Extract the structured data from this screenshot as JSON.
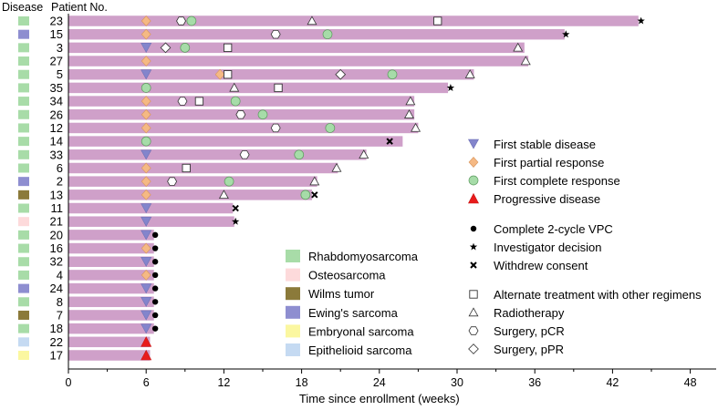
{
  "chart_data": {
    "type": "swimmer",
    "header_disease": "Disease",
    "header_patient": "Patient No.",
    "xlabel": "Time since enrollment (weeks)",
    "xlim": [
      0,
      50
    ],
    "xticks": [
      0,
      6,
      12,
      18,
      24,
      30,
      36,
      42,
      48
    ],
    "bar_color": "#cfa0c9",
    "disease_colors": {
      "Rhabdomyosarcoma": "#a8dca8",
      "Osteosarcoma": "#fddadb",
      "Wilms tumor": "#8b7a3a",
      "Ewing's sarcoma": "#8e8ed0",
      "Embryonal sarcoma": "#fbf7a0",
      "Epithelioid sarcoma": "#c5daf2"
    },
    "disease_legend": [
      "Rhabdomyosarcoma",
      "Osteosarcoma",
      "Wilms tumor",
      "Ewing's sarcoma",
      "Embryonal sarcoma",
      "Epithelioid sarcoma"
    ],
    "event_legend": [
      {
        "type": "stable",
        "label": "First stable disease"
      },
      {
        "type": "partial",
        "label": "First partial response"
      },
      {
        "type": "complete",
        "label": "First complete response"
      },
      {
        "type": "progressive",
        "label": "Progressive disease"
      },
      {
        "type": "vpc",
        "label": "Complete 2-cycle VPC"
      },
      {
        "type": "investigator",
        "label": "Investigator decision"
      },
      {
        "type": "withdrew",
        "label": "Withdrew consent"
      },
      {
        "type": "alternate",
        "label": "Alternate treatment with other regimens"
      },
      {
        "type": "radio",
        "label": "Radiotherapy"
      },
      {
        "type": "pcr",
        "label": "Surgery, pCR"
      },
      {
        "type": "ppr",
        "label": "Surgery, pPR"
      }
    ],
    "patients": [
      {
        "id": "23",
        "disease": "Rhabdomyosarcoma",
        "end": 44,
        "events": [
          {
            "t": 6,
            "type": "partial"
          },
          {
            "t": 8.7,
            "type": "pcr"
          },
          {
            "t": 9.5,
            "type": "complete"
          },
          {
            "t": 18.8,
            "type": "radio"
          },
          {
            "t": 28.5,
            "type": "alternate"
          },
          {
            "t": 44.2,
            "type": "investigator"
          }
        ]
      },
      {
        "id": "15",
        "disease": "Ewing's sarcoma",
        "end": 38.3,
        "events": [
          {
            "t": 6,
            "type": "partial"
          },
          {
            "t": 16,
            "type": "pcr"
          },
          {
            "t": 20,
            "type": "complete"
          },
          {
            "t": 38.4,
            "type": "investigator"
          }
        ]
      },
      {
        "id": "3",
        "disease": "Rhabdomyosarcoma",
        "end": 35.2,
        "events": [
          {
            "t": 6,
            "type": "stable"
          },
          {
            "t": 7.5,
            "type": "ppr"
          },
          {
            "t": 9,
            "type": "complete"
          },
          {
            "t": 12.3,
            "type": "alternate"
          },
          {
            "t": 34.7,
            "type": "radio"
          }
        ]
      },
      {
        "id": "27",
        "disease": "Rhabdomyosarcoma",
        "end": 35.5,
        "events": [
          {
            "t": 6,
            "type": "partial"
          },
          {
            "t": 35.3,
            "type": "radio"
          }
        ]
      },
      {
        "id": "5",
        "disease": "Rhabdomyosarcoma",
        "end": 31.3,
        "events": [
          {
            "t": 6,
            "type": "stable"
          },
          {
            "t": 11.7,
            "type": "partial"
          },
          {
            "t": 12.3,
            "type": "alternate"
          },
          {
            "t": 21,
            "type": "ppr"
          },
          {
            "t": 25,
            "type": "complete"
          },
          {
            "t": 31,
            "type": "radio"
          }
        ]
      },
      {
        "id": "35",
        "disease": "Rhabdomyosarcoma",
        "end": 29.3,
        "events": [
          {
            "t": 6,
            "type": "complete"
          },
          {
            "t": 12.8,
            "type": "radio"
          },
          {
            "t": 16.2,
            "type": "alternate"
          },
          {
            "t": 29.5,
            "type": "investigator"
          }
        ]
      },
      {
        "id": "34",
        "disease": "Rhabdomyosarcoma",
        "end": 26.7,
        "events": [
          {
            "t": 6,
            "type": "partial"
          },
          {
            "t": 8.8,
            "type": "pcr"
          },
          {
            "t": 10.1,
            "type": "alternate"
          },
          {
            "t": 12.9,
            "type": "complete"
          },
          {
            "t": 26.4,
            "type": "radio"
          }
        ]
      },
      {
        "id": "26",
        "disease": "Rhabdomyosarcoma",
        "end": 26.7,
        "events": [
          {
            "t": 6,
            "type": "partial"
          },
          {
            "t": 13.3,
            "type": "pcr"
          },
          {
            "t": 15,
            "type": "complete"
          },
          {
            "t": 26.3,
            "type": "radio"
          }
        ]
      },
      {
        "id": "12",
        "disease": "Rhabdomyosarcoma",
        "end": 27,
        "events": [
          {
            "t": 6,
            "type": "partial"
          },
          {
            "t": 16,
            "type": "pcr"
          },
          {
            "t": 20.2,
            "type": "complete"
          },
          {
            "t": 26.8,
            "type": "radio"
          }
        ]
      },
      {
        "id": "14",
        "disease": "Rhabdomyosarcoma",
        "end": 25.8,
        "events": [
          {
            "t": 6,
            "type": "complete"
          },
          {
            "t": 24.8,
            "type": "withdrew"
          }
        ]
      },
      {
        "id": "33",
        "disease": "Rhabdomyosarcoma",
        "end": 23,
        "events": [
          {
            "t": 6,
            "type": "stable"
          },
          {
            "t": 13.6,
            "type": "pcr"
          },
          {
            "t": 17.8,
            "type": "complete"
          },
          {
            "t": 22.8,
            "type": "radio"
          }
        ]
      },
      {
        "id": "6",
        "disease": "Rhabdomyosarcoma",
        "end": 20.8,
        "events": [
          {
            "t": 6,
            "type": "partial"
          },
          {
            "t": 9.1,
            "type": "alternate"
          },
          {
            "t": 20.7,
            "type": "radio"
          }
        ]
      },
      {
        "id": "2",
        "disease": "Ewing's sarcoma",
        "end": 19.2,
        "events": [
          {
            "t": 6,
            "type": "partial"
          },
          {
            "t": 8,
            "type": "pcr"
          },
          {
            "t": 12.4,
            "type": "complete"
          },
          {
            "t": 19,
            "type": "radio"
          }
        ]
      },
      {
        "id": "13",
        "disease": "Wilms tumor",
        "end": 18.8,
        "events": [
          {
            "t": 6,
            "type": "partial"
          },
          {
            "t": 12,
            "type": "radio"
          },
          {
            "t": 18.3,
            "type": "complete"
          },
          {
            "t": 19,
            "type": "withdrew"
          }
        ]
      },
      {
        "id": "11",
        "disease": "Rhabdomyosarcoma",
        "end": 12.7,
        "events": [
          {
            "t": 6,
            "type": "stable"
          },
          {
            "t": 12.9,
            "type": "withdrew"
          }
        ]
      },
      {
        "id": "21",
        "disease": "Osteosarcoma",
        "end": 12.8,
        "events": [
          {
            "t": 6,
            "type": "stable"
          },
          {
            "t": 12.9,
            "type": "investigator"
          }
        ]
      },
      {
        "id": "20",
        "disease": "Rhabdomyosarcoma",
        "end": 6.6,
        "events": [
          {
            "t": 6,
            "type": "stable"
          },
          {
            "t": 6.7,
            "type": "vpc"
          }
        ]
      },
      {
        "id": "16",
        "disease": "Rhabdomyosarcoma",
        "end": 6.6,
        "events": [
          {
            "t": 6,
            "type": "partial"
          },
          {
            "t": 6.7,
            "type": "vpc"
          }
        ]
      },
      {
        "id": "32",
        "disease": "Rhabdomyosarcoma",
        "end": 6.6,
        "events": [
          {
            "t": 6,
            "type": "stable"
          },
          {
            "t": 6.7,
            "type": "vpc"
          }
        ]
      },
      {
        "id": "4",
        "disease": "Rhabdomyosarcoma",
        "end": 6.6,
        "events": [
          {
            "t": 6,
            "type": "partial"
          },
          {
            "t": 6.7,
            "type": "vpc"
          }
        ]
      },
      {
        "id": "24",
        "disease": "Ewing's sarcoma",
        "end": 6.6,
        "events": [
          {
            "t": 6,
            "type": "stable"
          },
          {
            "t": 6.7,
            "type": "vpc"
          }
        ]
      },
      {
        "id": "8",
        "disease": "Rhabdomyosarcoma",
        "end": 6.6,
        "events": [
          {
            "t": 6,
            "type": "stable"
          },
          {
            "t": 6.7,
            "type": "vpc"
          }
        ]
      },
      {
        "id": "7",
        "disease": "Wilms tumor",
        "end": 6.6,
        "events": [
          {
            "t": 6,
            "type": "stable"
          },
          {
            "t": 6.7,
            "type": "vpc"
          }
        ]
      },
      {
        "id": "18",
        "disease": "Rhabdomyosarcoma",
        "end": 6.6,
        "events": [
          {
            "t": 6,
            "type": "stable"
          },
          {
            "t": 6.7,
            "type": "vpc"
          }
        ]
      },
      {
        "id": "22",
        "disease": "Epithelioid sarcoma",
        "end": 6.3,
        "events": [
          {
            "t": 6,
            "type": "progressive"
          }
        ]
      },
      {
        "id": "17",
        "disease": "Embryonal sarcoma",
        "end": 6.3,
        "events": [
          {
            "t": 6,
            "type": "progressive"
          }
        ]
      }
    ]
  }
}
